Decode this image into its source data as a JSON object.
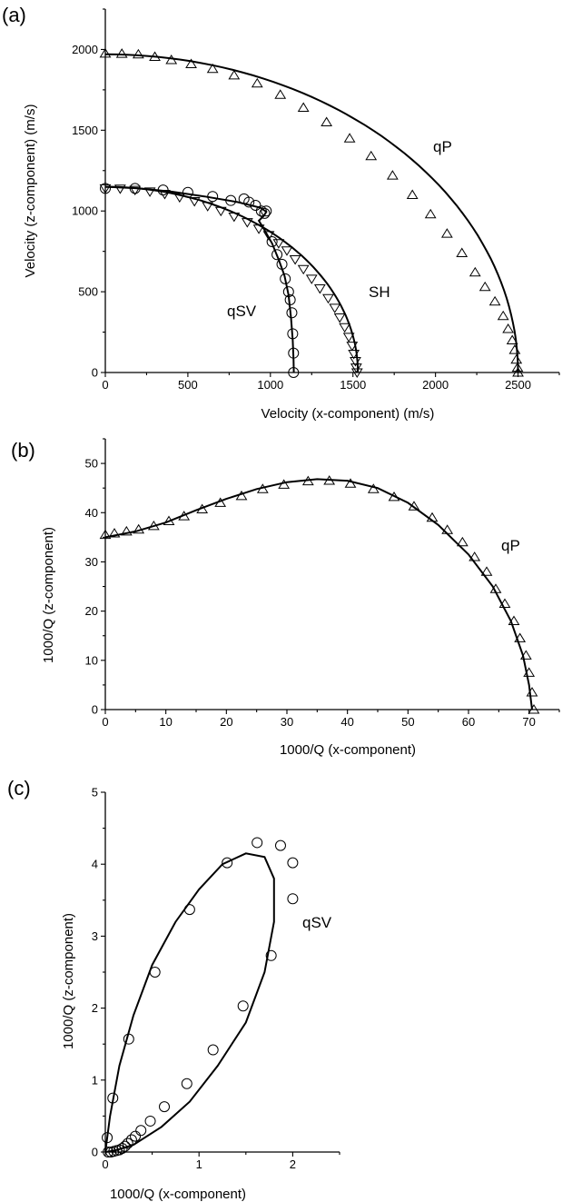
{
  "chart_data": [
    {
      "id": "a",
      "panel_label": "(a)",
      "type": "scatter",
      "xlabel": "Velocity (x-component) (m/s)",
      "ylabel": "Velocity (z-component) (m/s)",
      "xlim": [
        0,
        2750
      ],
      "ylim": [
        0,
        2250
      ],
      "xticks": [
        0,
        500,
        1000,
        1500,
        2000,
        2500
      ],
      "yticks": [
        0,
        500,
        1000,
        1500,
        2000
      ],
      "series": [
        {
          "name": "qP",
          "marker": "triangle-up",
          "curve": {
            "shape": "quarter-ellipse",
            "x0": 2500,
            "z0": 1970
          },
          "points": [
            [
              0,
              1975
            ],
            [
              100,
              1974
            ],
            [
              200,
              1970
            ],
            [
              300,
              1955
            ],
            [
              400,
              1935
            ],
            [
              520,
              1910
            ],
            [
              650,
              1880
            ],
            [
              780,
              1840
            ],
            [
              920,
              1790
            ],
            [
              1060,
              1720
            ],
            [
              1200,
              1640
            ],
            [
              1340,
              1550
            ],
            [
              1480,
              1450
            ],
            [
              1610,
              1340
            ],
            [
              1740,
              1220
            ],
            [
              1860,
              1100
            ],
            [
              1970,
              980
            ],
            [
              2070,
              860
            ],
            [
              2160,
              740
            ],
            [
              2240,
              620
            ],
            [
              2300,
              530
            ],
            [
              2360,
              440
            ],
            [
              2410,
              350
            ],
            [
              2440,
              270
            ],
            [
              2465,
              200
            ],
            [
              2480,
              140
            ],
            [
              2490,
              80
            ],
            [
              2497,
              30
            ],
            [
              2500,
              0
            ]
          ]
        },
        {
          "name": "SH",
          "marker": "triangle-down",
          "curve": {
            "shape": "quarter-ellipse",
            "x0": 1530,
            "z0": 1150
          },
          "points": [
            [
              0,
              1140
            ],
            [
              90,
              1138
            ],
            [
              180,
              1130
            ],
            [
              270,
              1120
            ],
            [
              360,
              1105
            ],
            [
              450,
              1085
            ],
            [
              540,
              1060
            ],
            [
              620,
              1030
            ],
            [
              700,
              1000
            ],
            [
              780,
              965
            ],
            [
              860,
              930
            ],
            [
              930,
              890
            ],
            [
              990,
              850
            ],
            [
              1050,
              800
            ],
            [
              1100,
              755
            ],
            [
              1150,
              700
            ],
            [
              1200,
              640
            ],
            [
              1250,
              580
            ],
            [
              1300,
              520
            ],
            [
              1350,
              460
            ],
            [
              1390,
              400
            ],
            [
              1420,
              340
            ],
            [
              1450,
              280
            ],
            [
              1475,
              220
            ],
            [
              1495,
              165
            ],
            [
              1505,
              115
            ],
            [
              1515,
              70
            ],
            [
              1520,
              30
            ],
            [
              1525,
              0
            ]
          ]
        },
        {
          "name": "qSV",
          "marker": "circle",
          "curve_points": [
            [
              0,
              1150
            ],
            [
              200,
              1140
            ],
            [
              400,
              1120
            ],
            [
              600,
              1090
            ],
            [
              800,
              1055
            ],
            [
              940,
              1020
            ],
            [
              975,
              995
            ],
            [
              960,
              970
            ],
            [
              930,
              940
            ],
            [
              960,
              890
            ],
            [
              1010,
              800
            ],
            [
              1050,
              700
            ],
            [
              1085,
              600
            ],
            [
              1110,
              480
            ],
            [
              1125,
              340
            ],
            [
              1135,
              200
            ],
            [
              1140,
              80
            ],
            [
              1142,
              0
            ]
          ],
          "points": [
            [
              0,
              1140
            ],
            [
              180,
              1140
            ],
            [
              350,
              1130
            ],
            [
              500,
              1115
            ],
            [
              650,
              1090
            ],
            [
              760,
              1065
            ],
            [
              840,
              1075
            ],
            [
              870,
              1055
            ],
            [
              910,
              1035
            ],
            [
              945,
              1000
            ],
            [
              965,
              985
            ],
            [
              975,
              1000
            ],
            [
              1010,
              810
            ],
            [
              1040,
              730
            ],
            [
              1070,
              670
            ],
            [
              1090,
              580
            ],
            [
              1110,
              500
            ],
            [
              1120,
              450
            ],
            [
              1130,
              370
            ],
            [
              1135,
              240
            ],
            [
              1140,
              120
            ],
            [
              1140,
              0
            ]
          ]
        }
      ]
    },
    {
      "id": "b",
      "panel_label": "(b)",
      "type": "scatter",
      "xlabel": "1000/Q (x-component)",
      "ylabel": "1000/Q (z-component)",
      "xlim": [
        0,
        75
      ],
      "ylim": [
        0,
        55
      ],
      "xticks": [
        0,
        10,
        20,
        30,
        40,
        50,
        60,
        70
      ],
      "yticks": [
        0,
        10,
        20,
        30,
        40,
        50
      ],
      "series": [
        {
          "name": "qP",
          "marker": "triangle-up",
          "curve_points": [
            [
              0,
              35
            ],
            [
              5,
              36.2
            ],
            [
              10,
              38
            ],
            [
              15,
              40.5
            ],
            [
              20,
              42.8
            ],
            [
              25,
              44.8
            ],
            [
              30,
              46.2
            ],
            [
              35,
              46.8
            ],
            [
              40,
              46.5
            ],
            [
              45,
              45
            ],
            [
              50,
              42
            ],
            [
              55,
              37.5
            ],
            [
              60,
              31.5
            ],
            [
              64,
              25
            ],
            [
              67,
              18
            ],
            [
              69,
              11
            ],
            [
              70,
              5
            ],
            [
              70.5,
              0
            ]
          ],
          "points": [
            [
              0,
              35.5
            ],
            [
              1.5,
              35.8
            ],
            [
              3.5,
              36.2
            ],
            [
              5.5,
              36.6
            ],
            [
              8,
              37.3
            ],
            [
              10.5,
              38.3
            ],
            [
              13,
              39.3
            ],
            [
              16,
              40.7
            ],
            [
              19,
              42
            ],
            [
              22.5,
              43.4
            ],
            [
              26,
              44.8
            ],
            [
              29.5,
              45.7
            ],
            [
              33.5,
              46.4
            ],
            [
              37,
              46.5
            ],
            [
              40.5,
              45.9
            ],
            [
              44.3,
              44.8
            ],
            [
              47.7,
              43.2
            ],
            [
              51,
              41.3
            ],
            [
              54,
              39
            ],
            [
              56.5,
              36.5
            ],
            [
              59,
              34
            ],
            [
              61,
              31
            ],
            [
              63,
              28
            ],
            [
              64.5,
              24.5
            ],
            [
              66,
              21.5
            ],
            [
              67.5,
              18
            ],
            [
              68.5,
              14.5
            ],
            [
              69.5,
              11
            ],
            [
              70,
              7.5
            ],
            [
              70.5,
              3.5
            ],
            [
              70.8,
              0
            ]
          ]
        }
      ]
    },
    {
      "id": "c",
      "panel_label": "(c)",
      "type": "scatter",
      "xlabel": "1000/Q (x-component)",
      "ylabel": "1000/Q (z-component)",
      "xlim": [
        0,
        2.5
      ],
      "ylim": [
        0,
        5
      ],
      "xticks": [
        0,
        1,
        2
      ],
      "yticks": [
        0,
        1,
        2,
        3,
        4,
        5
      ],
      "series": [
        {
          "name": "qSV",
          "marker": "circle",
          "curve_points": [
            [
              0,
              0
            ],
            [
              0.05,
              0.5
            ],
            [
              0.15,
              1.2
            ],
            [
              0.3,
              1.9
            ],
            [
              0.5,
              2.6
            ],
            [
              0.75,
              3.2
            ],
            [
              1.0,
              3.65
            ],
            [
              1.25,
              4.0
            ],
            [
              1.5,
              4.15
            ],
            [
              1.7,
              4.1
            ],
            [
              1.8,
              3.8
            ],
            [
              1.8,
              3.2
            ],
            [
              1.7,
              2.5
            ],
            [
              1.5,
              1.8
            ],
            [
              1.2,
              1.2
            ],
            [
              0.9,
              0.7
            ],
            [
              0.6,
              0.35
            ],
            [
              0.3,
              0.1
            ],
            [
              0.1,
              0.02
            ],
            [
              0,
              0
            ]
          ],
          "points": [
            [
              0.02,
              0.2
            ],
            [
              0.08,
              0.75
            ],
            [
              0.25,
              1.57
            ],
            [
              0.53,
              2.5
            ],
            [
              0.9,
              3.37
            ],
            [
              1.3,
              4.02
            ],
            [
              1.62,
              4.3
            ],
            [
              1.87,
              4.26
            ],
            [
              2.0,
              4.02
            ],
            [
              2.0,
              3.52
            ],
            [
              1.77,
              2.73
            ],
            [
              1.47,
              2.03
            ],
            [
              1.15,
              1.42
            ],
            [
              0.87,
              0.95
            ],
            [
              0.63,
              0.63
            ],
            [
              0.48,
              0.43
            ],
            [
              0.38,
              0.3
            ],
            [
              0.32,
              0.22
            ],
            [
              0.28,
              0.17
            ],
            [
              0.24,
              0.12
            ],
            [
              0.21,
              0.08
            ],
            [
              0.18,
              0.05
            ],
            [
              0.15,
              0.03
            ],
            [
              0.12,
              0.02
            ],
            [
              0.09,
              0.01
            ],
            [
              0.06,
              0.0
            ],
            [
              0.03,
              0.0
            ]
          ]
        }
      ]
    }
  ]
}
